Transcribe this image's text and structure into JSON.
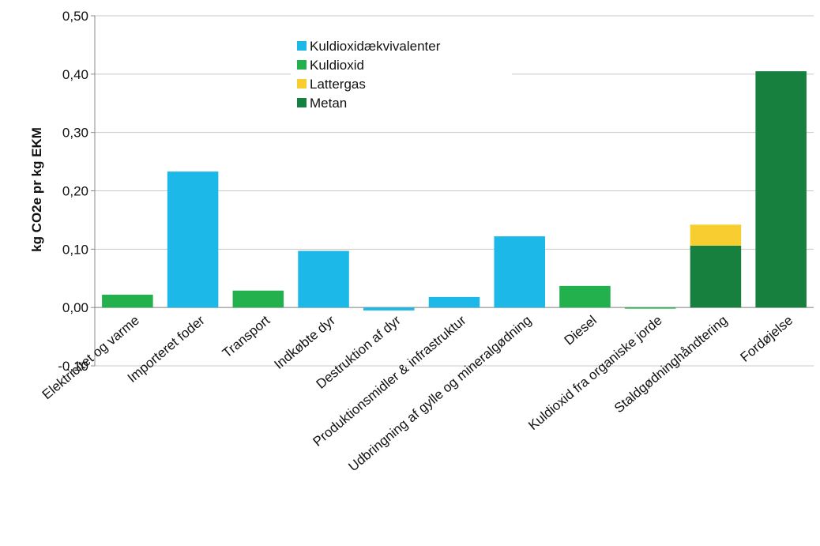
{
  "chart_data": {
    "type": "stacked-bar",
    "y_label": "kg CO2e pr kg EKM",
    "categories": [
      "Elektricitet og varme",
      "Importeret foder",
      "Transport",
      "Indkøbte dyr",
      "Destruktion af dyr",
      "Produktionsmidler & infrastruktur",
      "Udbringning af gylle og mineralgødning",
      "Diesel",
      "Kuldioxid fra organiske jorde",
      "Staldgødninghåndtering",
      "Fordøjelse"
    ],
    "series": [
      {
        "name": "Kuldioxidækvivalenter",
        "color": "#1cb8e8",
        "values": [
          null,
          0.233,
          null,
          0.097,
          -0.005,
          0.018,
          0.122,
          null,
          null,
          null,
          null
        ]
      },
      {
        "name": "Kuldioxid",
        "color": "#22b14c",
        "values": [
          0.022,
          null,
          0.029,
          null,
          null,
          null,
          null,
          0.037,
          -0.002,
          null,
          null
        ]
      },
      {
        "name": "Lattergas",
        "color": "#f7cd2f",
        "values": [
          null,
          null,
          null,
          null,
          null,
          null,
          null,
          null,
          null,
          0.036,
          null
        ]
      },
      {
        "name": "Metan",
        "color": "#17803f",
        "values": [
          null,
          null,
          null,
          null,
          null,
          null,
          null,
          null,
          null,
          0.106,
          0.405
        ]
      }
    ],
    "ylim": [
      -0.1,
      0.5
    ],
    "yticks": [
      {
        "value": -0.1,
        "label": "-0,10"
      },
      {
        "value": 0,
        "label": "0,00"
      },
      {
        "value": 0.1,
        "label": "0,10"
      },
      {
        "value": 0.2,
        "label": "0,20"
      },
      {
        "value": 0.3,
        "label": "0,30"
      },
      {
        "value": 0.4,
        "label": "0,40"
      },
      {
        "value": 0.5,
        "label": "0,50"
      }
    ],
    "grid": true
  }
}
